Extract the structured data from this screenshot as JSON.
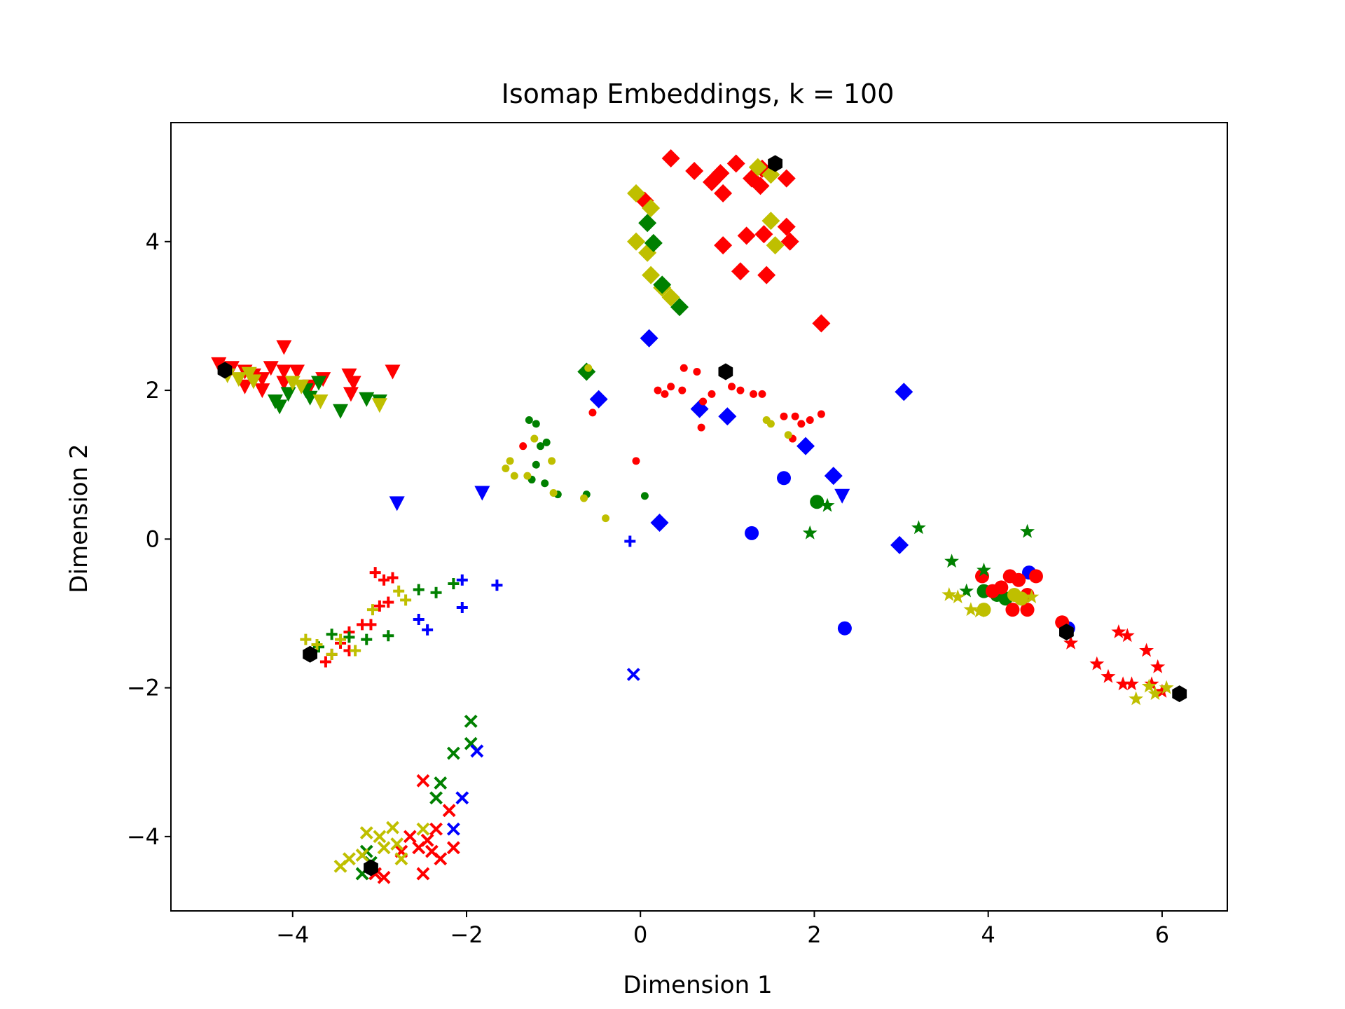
{
  "chart_data": {
    "type": "scatter",
    "title": "Isomap Embeddings, k = 100",
    "xlabel": "Dimension 1",
    "ylabel": "Dimension 2",
    "xlim": [
      -5.4,
      6.75
    ],
    "ylim": [
      -5.0,
      5.6
    ],
    "xticks": [
      -4,
      -2,
      0,
      2,
      4,
      6
    ],
    "yticks": [
      -4,
      -2,
      0,
      2,
      4
    ],
    "grid": false,
    "legend": "none",
    "colors": {
      "red": "#ff0000",
      "green": "#008000",
      "yellow": "#bfbf00",
      "blue": "#0000ff",
      "black": "#000000"
    },
    "series": [
      {
        "marker": "diamond",
        "color": "red",
        "points": [
          [
            0.35,
            5.12
          ],
          [
            0.62,
            4.95
          ],
          [
            0.82,
            4.8
          ],
          [
            0.92,
            4.92
          ],
          [
            1.1,
            5.05
          ],
          [
            0.95,
            4.65
          ],
          [
            1.28,
            4.85
          ],
          [
            1.38,
            4.75
          ],
          [
            1.68,
            4.85
          ],
          [
            0.95,
            3.95
          ],
          [
            1.22,
            4.08
          ],
          [
            1.42,
            4.1
          ],
          [
            1.68,
            4.2
          ],
          [
            1.72,
            4.0
          ],
          [
            1.15,
            3.6
          ],
          [
            1.45,
            3.55
          ],
          [
            2.08,
            2.9
          ],
          [
            1.4,
            4.98
          ],
          [
            0.05,
            4.55
          ]
        ]
      },
      {
        "marker": "diamond",
        "color": "yellow",
        "points": [
          [
            -0.05,
            4.65
          ],
          [
            0.12,
            4.45
          ],
          [
            -0.05,
            4.0
          ],
          [
            0.08,
            3.85
          ],
          [
            0.12,
            3.55
          ],
          [
            0.25,
            3.38
          ],
          [
            0.35,
            3.25
          ],
          [
            1.5,
            4.28
          ],
          [
            1.55,
            3.95
          ],
          [
            1.35,
            5.0
          ],
          [
            1.5,
            4.9
          ]
        ]
      },
      {
        "marker": "diamond",
        "color": "green",
        "points": [
          [
            0.08,
            4.25
          ],
          [
            0.15,
            3.98
          ],
          [
            0.25,
            3.42
          ],
          [
            0.45,
            3.12
          ],
          [
            -0.62,
            2.25
          ]
        ]
      },
      {
        "marker": "diamond",
        "color": "blue",
        "points": [
          [
            0.1,
            2.7
          ],
          [
            -0.48,
            1.88
          ],
          [
            0.68,
            1.75
          ],
          [
            1.0,
            1.65
          ],
          [
            1.9,
            1.25
          ],
          [
            2.22,
            0.85
          ],
          [
            3.03,
            1.98
          ],
          [
            0.22,
            0.22
          ],
          [
            2.98,
            -0.08
          ]
        ]
      },
      {
        "marker": "dot",
        "color": "red",
        "points": [
          [
            0.2,
            2.0
          ],
          [
            0.28,
            1.95
          ],
          [
            0.35,
            2.05
          ],
          [
            0.48,
            2.0
          ],
          [
            0.5,
            2.3
          ],
          [
            0.65,
            2.25
          ],
          [
            0.72,
            1.85
          ],
          [
            0.82,
            1.95
          ],
          [
            1.05,
            2.05
          ],
          [
            1.15,
            2.0
          ],
          [
            1.3,
            1.95
          ],
          [
            1.4,
            1.95
          ],
          [
            1.65,
            1.65
          ],
          [
            1.78,
            1.65
          ],
          [
            1.85,
            1.55
          ],
          [
            1.95,
            1.6
          ],
          [
            2.08,
            1.68
          ],
          [
            1.75,
            1.35
          ],
          [
            -0.05,
            1.05
          ],
          [
            -1.35,
            1.25
          ],
          [
            -0.55,
            1.7
          ],
          [
            0.7,
            1.5
          ]
        ]
      },
      {
        "marker": "dot",
        "color": "green",
        "points": [
          [
            -1.28,
            1.6
          ],
          [
            -1.2,
            1.55
          ],
          [
            -1.15,
            1.25
          ],
          [
            -1.08,
            1.3
          ],
          [
            -1.2,
            1.0
          ],
          [
            -1.1,
            0.75
          ],
          [
            -1.25,
            0.8
          ],
          [
            -0.95,
            0.6
          ],
          [
            -0.62,
            0.6
          ],
          [
            0.05,
            0.58
          ]
        ]
      },
      {
        "marker": "dot",
        "color": "yellow",
        "points": [
          [
            -1.55,
            0.95
          ],
          [
            -1.45,
            0.85
          ],
          [
            -1.5,
            1.05
          ],
          [
            -1.22,
            1.35
          ],
          [
            -1.3,
            0.85
          ],
          [
            -1.02,
            1.05
          ],
          [
            -1.0,
            0.62
          ],
          [
            -0.65,
            0.55
          ],
          [
            -0.4,
            0.28
          ],
          [
            1.45,
            1.6
          ],
          [
            1.7,
            1.4
          ],
          [
            -0.6,
            2.3
          ],
          [
            1.5,
            1.55
          ]
        ]
      },
      {
        "marker": "circle",
        "color": "blue",
        "points": [
          [
            1.65,
            0.82
          ],
          [
            1.28,
            0.08
          ],
          [
            2.35,
            -1.2
          ],
          [
            4.47,
            -0.45
          ],
          [
            4.92,
            -1.2
          ]
        ]
      },
      {
        "marker": "circle",
        "color": "green",
        "points": [
          [
            2.03,
            0.5
          ],
          [
            3.95,
            -0.7
          ],
          [
            4.1,
            -0.75
          ],
          [
            4.2,
            -0.8
          ]
        ]
      },
      {
        "marker": "circle",
        "color": "red",
        "points": [
          [
            3.93,
            -0.5
          ],
          [
            4.05,
            -0.7
          ],
          [
            4.15,
            -0.65
          ],
          [
            4.25,
            -0.5
          ],
          [
            4.35,
            -0.55
          ],
          [
            4.45,
            -0.75
          ],
          [
            4.55,
            -0.5
          ],
          [
            4.28,
            -0.95
          ],
          [
            4.45,
            -0.95
          ],
          [
            4.85,
            -1.12
          ]
        ]
      },
      {
        "marker": "circle",
        "color": "yellow",
        "points": [
          [
            3.95,
            -0.95
          ],
          [
            4.3,
            -0.75
          ],
          [
            4.38,
            -0.8
          ]
        ]
      },
      {
        "marker": "star",
        "color": "red",
        "points": [
          [
            5.25,
            -1.68
          ],
          [
            5.38,
            -1.85
          ],
          [
            5.55,
            -1.95
          ],
          [
            5.6,
            -1.3
          ],
          [
            5.5,
            -1.25
          ],
          [
            5.65,
            -1.95
          ],
          [
            5.82,
            -1.5
          ],
          [
            5.95,
            -1.72
          ],
          [
            5.88,
            -1.95
          ],
          [
            6.0,
            -2.05
          ],
          [
            4.95,
            -1.4
          ]
        ]
      },
      {
        "marker": "star",
        "color": "green",
        "points": [
          [
            3.2,
            0.15
          ],
          [
            4.45,
            0.1
          ],
          [
            1.95,
            0.08
          ],
          [
            3.58,
            -0.3
          ],
          [
            3.95,
            -0.42
          ],
          [
            3.75,
            -0.7
          ],
          [
            2.15,
            0.45
          ]
        ]
      },
      {
        "marker": "star",
        "color": "yellow",
        "points": [
          [
            3.55,
            -0.75
          ],
          [
            3.65,
            -0.78
          ],
          [
            3.8,
            -0.95
          ],
          [
            3.9,
            -0.97
          ],
          [
            5.7,
            -2.15
          ],
          [
            5.92,
            -2.08
          ],
          [
            5.85,
            -1.98
          ],
          [
            6.05,
            -2.0
          ],
          [
            4.5,
            -0.78
          ]
        ]
      },
      {
        "marker": "tri-down",
        "color": "red",
        "points": [
          [
            -4.85,
            2.35
          ],
          [
            -4.7,
            2.3
          ],
          [
            -4.55,
            2.25
          ],
          [
            -4.45,
            2.2
          ],
          [
            -4.35,
            2.15
          ],
          [
            -4.25,
            2.3
          ],
          [
            -4.1,
            2.25
          ],
          [
            -4.1,
            2.1
          ],
          [
            -3.95,
            2.25
          ],
          [
            -3.8,
            2.05
          ],
          [
            -3.65,
            2.15
          ],
          [
            -3.35,
            2.2
          ],
          [
            -3.3,
            2.1
          ],
          [
            -3.33,
            1.95
          ],
          [
            -2.85,
            2.25
          ],
          [
            -4.1,
            2.58
          ],
          [
            -4.55,
            2.05
          ],
          [
            -4.35,
            2.0
          ]
        ]
      },
      {
        "marker": "tri-down",
        "color": "green",
        "points": [
          [
            -4.2,
            1.85
          ],
          [
            -4.15,
            1.78
          ],
          [
            -3.85,
            2.0
          ],
          [
            -3.8,
            1.9
          ],
          [
            -3.7,
            2.1
          ],
          [
            -3.45,
            1.72
          ],
          [
            -3.15,
            1.88
          ],
          [
            -3.0,
            1.85
          ],
          [
            -4.05,
            1.95
          ]
        ]
      },
      {
        "marker": "tri-down",
        "color": "yellow",
        "points": [
          [
            -4.75,
            2.2
          ],
          [
            -4.62,
            2.15
          ],
          [
            -4.45,
            2.12
          ],
          [
            -4.0,
            2.1
          ],
          [
            -3.9,
            2.05
          ],
          [
            -3.68,
            1.85
          ],
          [
            -3.0,
            1.8
          ],
          [
            -4.5,
            2.22
          ]
        ]
      },
      {
        "marker": "tri-down",
        "color": "blue",
        "points": [
          [
            -2.8,
            0.48
          ],
          [
            -1.82,
            0.62
          ],
          [
            2.32,
            0.58
          ]
        ]
      },
      {
        "marker": "plus",
        "color": "red",
        "points": [
          [
            -3.05,
            -0.45
          ],
          [
            -2.95,
            -0.55
          ],
          [
            -2.85,
            -0.52
          ],
          [
            -2.9,
            -0.85
          ],
          [
            -3.0,
            -0.9
          ],
          [
            -3.2,
            -1.15
          ],
          [
            -3.1,
            -1.15
          ],
          [
            -3.35,
            -1.25
          ],
          [
            -3.45,
            -1.4
          ],
          [
            -3.55,
            -1.55
          ],
          [
            -3.62,
            -1.65
          ],
          [
            -3.35,
            -1.5
          ]
        ]
      },
      {
        "marker": "plus",
        "color": "green",
        "points": [
          [
            -2.55,
            -0.68
          ],
          [
            -2.35,
            -0.72
          ],
          [
            -2.15,
            -0.6
          ],
          [
            -2.9,
            -1.3
          ],
          [
            -3.15,
            -1.35
          ],
          [
            -3.35,
            -1.32
          ],
          [
            -3.55,
            -1.28
          ],
          [
            -3.7,
            -1.45
          ]
        ]
      },
      {
        "marker": "plus",
        "color": "yellow",
        "points": [
          [
            -2.78,
            -0.7
          ],
          [
            -2.7,
            -0.82
          ],
          [
            -3.08,
            -0.95
          ],
          [
            -3.85,
            -1.35
          ],
          [
            -3.72,
            -1.42
          ],
          [
            -3.45,
            -1.35
          ],
          [
            -3.28,
            -1.5
          ],
          [
            -3.55,
            -1.55
          ]
        ]
      },
      {
        "marker": "plus",
        "color": "blue",
        "points": [
          [
            -2.05,
            -0.55
          ],
          [
            -1.65,
            -0.62
          ],
          [
            -2.05,
            -0.92
          ],
          [
            -2.55,
            -1.08
          ],
          [
            -2.45,
            -1.22
          ],
          [
            -0.12,
            -0.03
          ]
        ]
      },
      {
        "marker": "x",
        "color": "green",
        "points": [
          [
            -1.95,
            -2.45
          ],
          [
            -1.95,
            -2.75
          ],
          [
            -2.15,
            -2.88
          ],
          [
            -2.3,
            -3.28
          ],
          [
            -2.35,
            -3.48
          ],
          [
            -3.2,
            -4.5
          ],
          [
            -3.1,
            -4.35
          ],
          [
            -3.15,
            -4.2
          ]
        ]
      },
      {
        "marker": "x",
        "color": "red",
        "points": [
          [
            -2.5,
            -3.25
          ],
          [
            -2.2,
            -3.65
          ],
          [
            -2.35,
            -3.9
          ],
          [
            -2.45,
            -4.05
          ],
          [
            -2.55,
            -4.15
          ],
          [
            -2.4,
            -4.2
          ],
          [
            -2.3,
            -4.3
          ],
          [
            -2.5,
            -4.5
          ],
          [
            -2.15,
            -4.15
          ],
          [
            -2.65,
            -4.0
          ],
          [
            -2.75,
            -4.2
          ],
          [
            -3.05,
            -4.5
          ],
          [
            -2.95,
            -4.55
          ]
        ]
      },
      {
        "marker": "x",
        "color": "yellow",
        "points": [
          [
            -3.45,
            -4.4
          ],
          [
            -3.35,
            -4.3
          ],
          [
            -3.2,
            -4.25
          ],
          [
            -3.0,
            -4.0
          ],
          [
            -2.95,
            -4.15
          ],
          [
            -2.85,
            -3.88
          ],
          [
            -2.75,
            -4.3
          ],
          [
            -2.5,
            -3.9
          ],
          [
            -3.15,
            -3.95
          ],
          [
            -2.8,
            -4.1
          ]
        ]
      },
      {
        "marker": "x",
        "color": "blue",
        "points": [
          [
            -1.88,
            -2.85
          ],
          [
            -2.05,
            -3.48
          ],
          [
            -2.15,
            -3.9
          ],
          [
            -0.08,
            -1.82
          ]
        ]
      },
      {
        "marker": "hexagon",
        "color": "black",
        "points": [
          [
            -4.78,
            2.27
          ],
          [
            1.55,
            5.05
          ],
          [
            0.98,
            2.25
          ],
          [
            -3.8,
            -1.55
          ],
          [
            -3.1,
            -4.42
          ],
          [
            4.9,
            -1.25
          ],
          [
            6.2,
            -2.08
          ]
        ]
      }
    ]
  }
}
